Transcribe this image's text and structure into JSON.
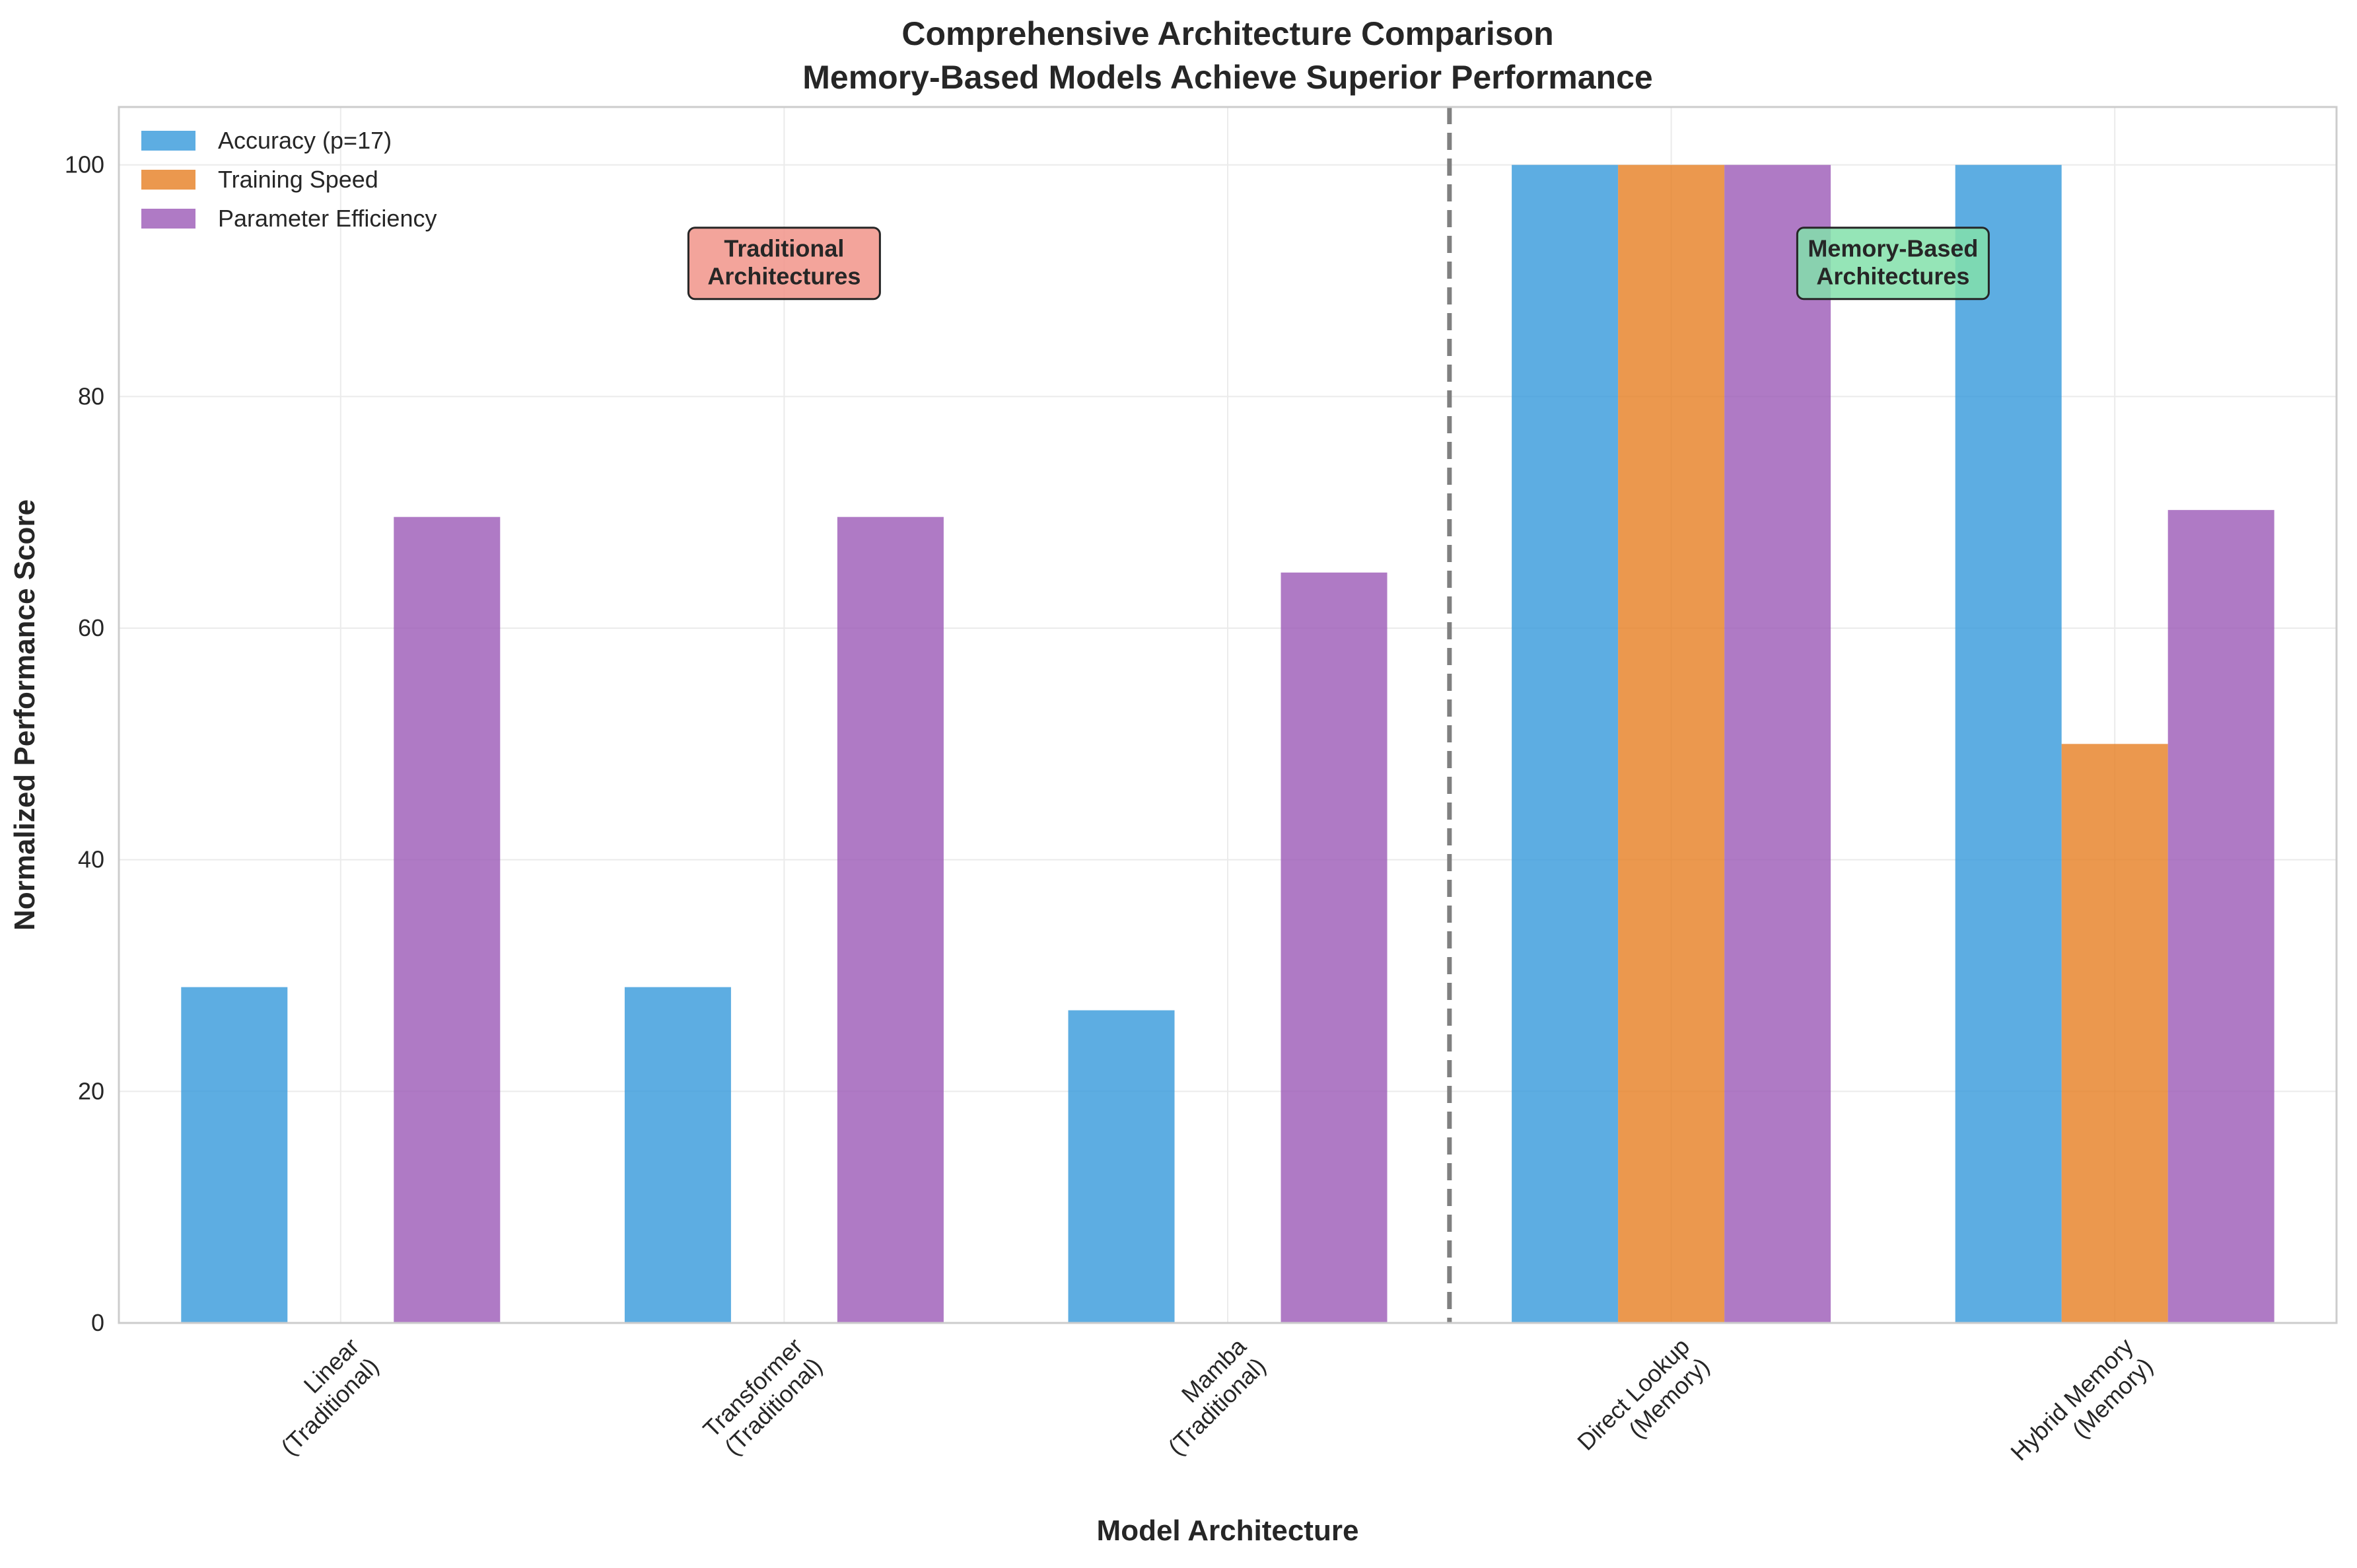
{
  "chart_data": {
    "type": "bar",
    "title_lines": [
      "Comprehensive Architecture Comparison",
      "Memory-Based Models Achieve Superior Performance"
    ],
    "xlabel": "Model Architecture",
    "ylabel": "Normalized Performance Score",
    "ylim": [
      0,
      105
    ],
    "yticks": [
      0,
      20,
      40,
      60,
      80,
      100
    ],
    "grid": true,
    "legend_position": "top-left",
    "categories": [
      [
        "Linear",
        "(Traditional)"
      ],
      [
        "Transformer",
        "(Traditional)"
      ],
      [
        "Mamba",
        "(Traditional)"
      ],
      [
        "Direct Lookup",
        "(Memory)"
      ],
      [
        "Hybrid Memory",
        "(Memory)"
      ]
    ],
    "series": [
      {
        "name": "Accuracy (p=17)",
        "color": "#3498db",
        "values": [
          29,
          29,
          27,
          100,
          100
        ]
      },
      {
        "name": "Training Speed",
        "color": "#e67e22",
        "values": [
          0,
          0,
          0,
          100,
          50
        ]
      },
      {
        "name": "Parameter Efficiency",
        "color": "#9b59b6",
        "values": [
          69.6,
          69.6,
          64.8,
          100,
          70.2
        ]
      }
    ],
    "divider_after_category": 2,
    "annotations": [
      {
        "lines": [
          "Traditional",
          "Architectures"
        ],
        "x_category": 1,
        "y": 91.5,
        "bg": "#f1948a"
      },
      {
        "lines": [
          "Memory-Based",
          "Architectures"
        ],
        "x_category": 3.5,
        "y": 91.5,
        "bg": "#82e0aa"
      }
    ]
  }
}
